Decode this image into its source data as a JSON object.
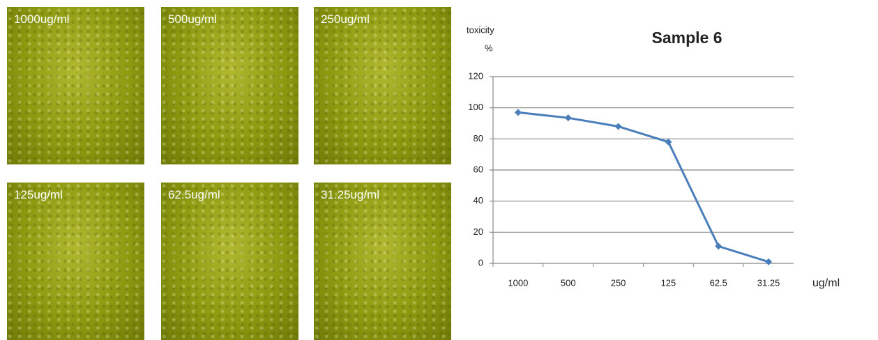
{
  "panels": [
    {
      "label": "1000ug/ml"
    },
    {
      "label": "500ug/ml"
    },
    {
      "label": "250ug/ml"
    },
    {
      "label": "125ug/ml"
    },
    {
      "label": "62.5ug/ml"
    },
    {
      "label": "31.25ug/ml"
    }
  ],
  "chart_data": {
    "type": "line",
    "title": "Sample 6",
    "ylabel": "toxicity",
    "ylabel_unit": "%",
    "xlabel": "ug/ml",
    "categories": [
      "1000",
      "500",
      "250",
      "125",
      "62.5",
      "31.25"
    ],
    "series": [
      {
        "name": "toxicity",
        "color": "#4a7ebb",
        "values": [
          97,
          93.5,
          88,
          78,
          11,
          1
        ]
      }
    ],
    "ylim": [
      0,
      120
    ],
    "yticks": [
      0,
      20,
      40,
      60,
      80,
      100,
      120
    ],
    "grid": true
  }
}
